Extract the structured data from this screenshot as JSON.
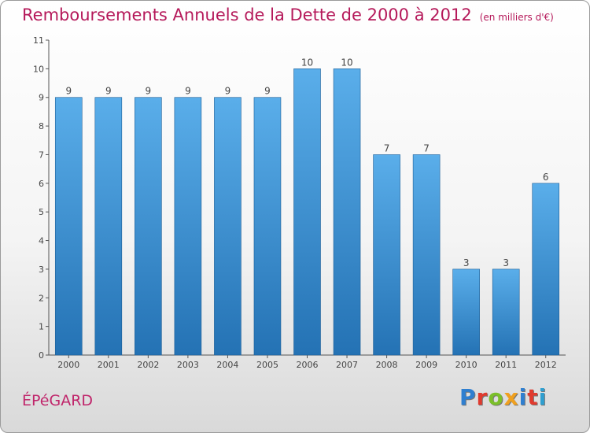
{
  "title": "Remboursements Annuels de la Dette de 2000 à 2012",
  "unit": "(en milliers d'€)",
  "city": "ÉPéGARD",
  "brand": {
    "text": "Proxiti",
    "colors": [
      "#2f7fd0",
      "#e03a2e",
      "#7bbf2a",
      "#f0a01e",
      "#2f7fd0",
      "#e03a2e",
      "#2f9fd0"
    ]
  },
  "colors": {
    "bar_top": "#5aaeea",
    "bar_bottom": "#2472b4",
    "title": "#b5195a"
  },
  "chart_data": {
    "type": "bar",
    "title": "Remboursements Annuels de la Dette de 2000 à 2012",
    "xlabel": "",
    "ylabel": "",
    "categories": [
      "2000",
      "2001",
      "2002",
      "2003",
      "2004",
      "2005",
      "2006",
      "2007",
      "2008",
      "2009",
      "2010",
      "2011",
      "2012"
    ],
    "values": [
      9,
      9,
      9,
      9,
      9,
      9,
      10,
      10,
      7,
      7,
      3,
      3,
      6
    ],
    "yticks": [
      0,
      1,
      2,
      3,
      4,
      5,
      6,
      7,
      8,
      9,
      10,
      11
    ],
    "ylim": [
      0,
      11
    ],
    "grid": false,
    "data_labels": true
  }
}
